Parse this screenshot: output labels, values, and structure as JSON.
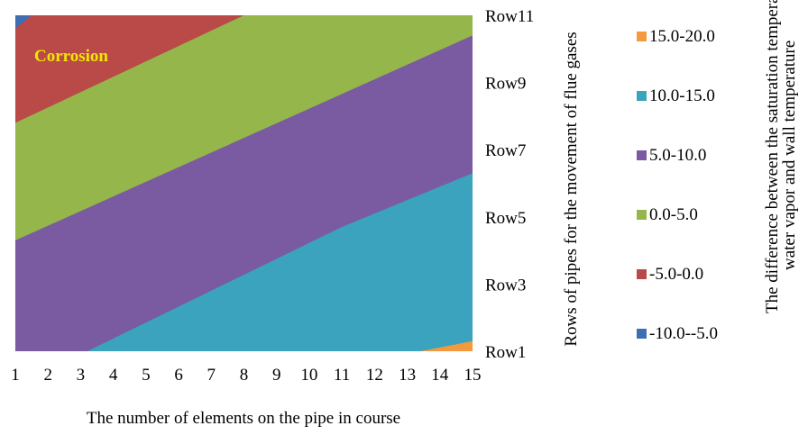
{
  "chart_data": {
    "type": "contour",
    "xlabel": "The number of elements on the pipe in course",
    "ylabel": "Rows of pipes for the movement of flue gases",
    "legend_title": "The difference between the saturation temperature of water vapor and wall temperature",
    "x_ticks": [
      "1",
      "2",
      "3",
      "4",
      "5",
      "6",
      "7",
      "8",
      "9",
      "10",
      "11",
      "12",
      "13",
      "14",
      "15"
    ],
    "y_ticks": [
      "Row1",
      "Row3",
      "Row5",
      "Row7",
      "Row9",
      "Row11"
    ],
    "xlim": [
      1,
      15
    ],
    "ylim": [
      1,
      11
    ],
    "annotation": "Corrosion",
    "annotation_color": "#f2e600",
    "legend": [
      {
        "label": "15.0-20.0",
        "color": "#f39a3e"
      },
      {
        "label": "10.0-15.0",
        "color": "#3ba3bd"
      },
      {
        "label": "5.0-10.0",
        "color": "#7a5aa0"
      },
      {
        "label": "0.0-5.0",
        "color": "#94b64a"
      },
      {
        "label": "-5.0-0.0",
        "color": "#b94a48"
      },
      {
        "label": "-10.0--5.0",
        "color": "#3d6eb1"
      }
    ],
    "bands": [
      {
        "label": "-10.0--5.0",
        "color": "#3d6eb1",
        "upper": [
          [
            1,
            11
          ],
          [
            1.5,
            11
          ]
        ],
        "region": "top-left corner"
      },
      {
        "label": "-5.0-0.0",
        "color": "#b94a48",
        "boundary": [
          [
            1,
            7.8
          ],
          [
            8,
            11
          ]
        ]
      },
      {
        "label": "0.0-5.0",
        "color": "#94b64a",
        "boundary": [
          [
            1,
            4.3
          ],
          [
            15,
            10.4
          ]
        ]
      },
      {
        "label": "5.0-10.0",
        "color": "#7a5aa0",
        "boundary": [
          [
            3.2,
            1
          ],
          [
            11,
            4.7
          ],
          [
            15,
            6.3
          ]
        ]
      },
      {
        "label": "10.0-15.0",
        "color": "#3ba3bd",
        "boundary": [
          [
            13.4,
            1
          ],
          [
            15,
            1.3
          ]
        ]
      },
      {
        "label": "15.0-20.0",
        "color": "#f39a3e",
        "region": "bottom-right corner"
      }
    ]
  }
}
